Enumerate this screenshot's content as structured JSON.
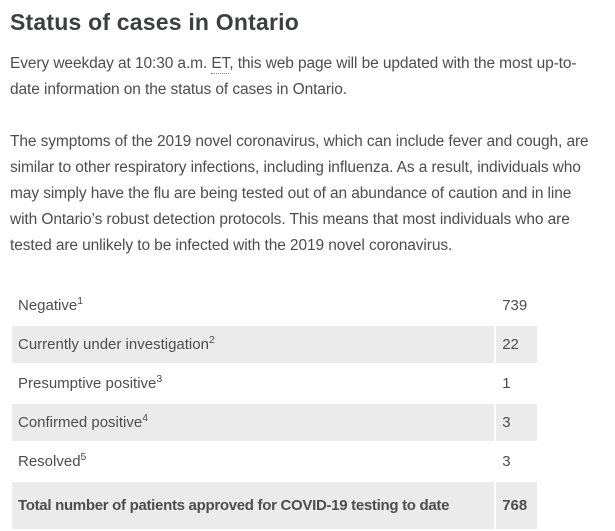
{
  "page": {
    "title": "Status of cases in Ontario",
    "intro": {
      "before_abbr": "Every weekday at 10:30 a.m. ",
      "abbr": "ET",
      "after_abbr": ", this web page will be updated with the most up-to-date information on the status of cases in Ontario."
    },
    "symptoms_paragraph": "The symptoms of the 2019 novel coronavirus, which can include fever and cough, are similar to other respiratory infections, including influenza. As a result, individuals who may simply have the flu are being tested out of an abundance of caution and in line with Ontario’s robust detection protocols. This means that most individuals who are tested are unlikely to be infected with the 2019 novel coronavirus."
  },
  "table": {
    "rows": [
      {
        "label": "Negative",
        "footnote": "1",
        "value": "739"
      },
      {
        "label": "Currently under investigation",
        "footnote": "2",
        "value": "22"
      },
      {
        "label": "Presumptive positive",
        "footnote": "3",
        "value": "1"
      },
      {
        "label": "Confirmed positive",
        "footnote": "4",
        "value": "3"
      },
      {
        "label": "Resolved",
        "footnote": "5",
        "value": "3"
      }
    ],
    "total_row": {
      "label": "Total number of patients approved for COVID-19 testing to date",
      "value": "768"
    }
  },
  "colors": {
    "heading_text": "#3c3e40",
    "body_text": "#4d4d4d",
    "row_stripe": "#ebebeb",
    "page_background": "#ffffff"
  }
}
